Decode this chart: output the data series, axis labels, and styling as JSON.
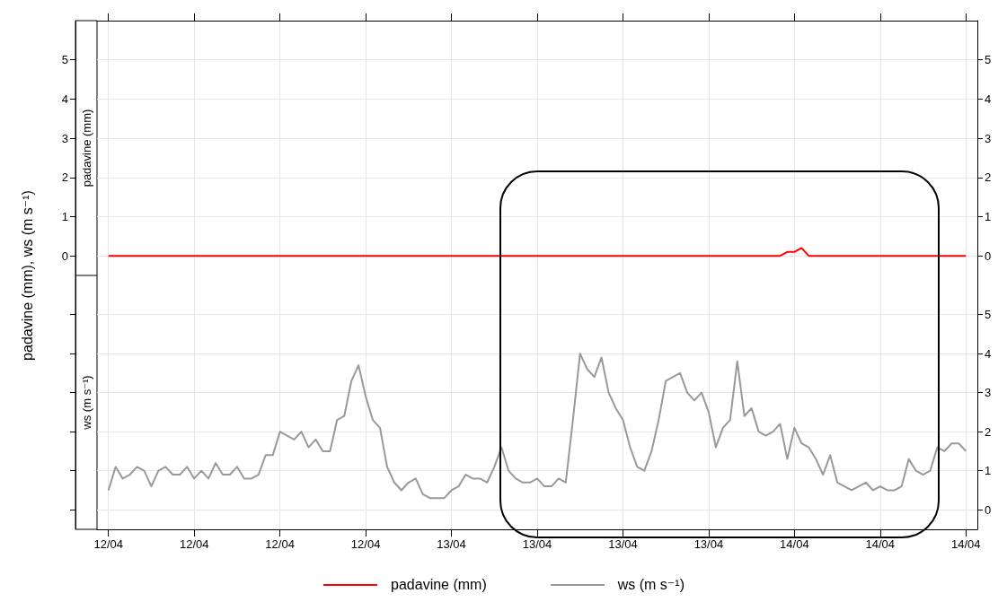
{
  "chart_data": [
    {
      "type": "line",
      "ylabel": "padavine (mm), ws (m s⁻¹)",
      "x": [
        "--04-12T00:00",
        "--04-12T00:30",
        "--04-12T01:00",
        "--04-12T01:30",
        "--04-12T02:00",
        "--04-12T02:30",
        "--04-12T03:00",
        "--04-12T03:30",
        "--04-12T04:00",
        "--04-12T04:30",
        "--04-12T05:00",
        "--04-12T05:30",
        "--04-12T06:00",
        "--04-12T06:30",
        "--04-12T07:00",
        "--04-12T07:30",
        "--04-12T08:00",
        "--04-12T08:30",
        "--04-12T09:00",
        "--04-12T09:30",
        "--04-12T10:00",
        "--04-12T10:30",
        "--04-12T11:00",
        "--04-12T11:30",
        "--04-12T12:00",
        "--04-12T12:30",
        "--04-12T13:00",
        "--04-12T13:30",
        "--04-12T14:00",
        "--04-12T14:30",
        "--04-12T15:00",
        "--04-12T15:30",
        "--04-12T16:00",
        "--04-12T16:30",
        "--04-12T17:00",
        "--04-12T17:30",
        "--04-12T18:00",
        "--04-12T18:30",
        "--04-12T19:00",
        "--04-12T19:30",
        "--04-12T20:00",
        "--04-12T20:30",
        "--04-12T21:00",
        "--04-12T21:30",
        "--04-12T22:00",
        "--04-12T22:30",
        "--04-12T23:00",
        "--04-12T23:30",
        "--04-13T00:00",
        "--04-13T00:30",
        "--04-13T01:00",
        "--04-13T01:30",
        "--04-13T02:00",
        "--04-13T02:30",
        "--04-13T03:00",
        "--04-13T03:30",
        "--04-13T04:00",
        "--04-13T04:30",
        "--04-13T05:00",
        "--04-13T05:30",
        "--04-13T06:00",
        "--04-13T06:30",
        "--04-13T07:00",
        "--04-13T07:30",
        "--04-13T08:00",
        "--04-13T08:30",
        "--04-13T09:00",
        "--04-13T09:30",
        "--04-13T10:00",
        "--04-13T10:30",
        "--04-13T11:00",
        "--04-13T11:30",
        "--04-13T12:00",
        "--04-13T12:30",
        "--04-13T13:00",
        "--04-13T13:30",
        "--04-13T14:00",
        "--04-13T14:30",
        "--04-13T15:00",
        "--04-13T15:30",
        "--04-13T16:00",
        "--04-13T16:30",
        "--04-13T17:00",
        "--04-13T17:30",
        "--04-13T18:00",
        "--04-13T18:30",
        "--04-13T19:00",
        "--04-13T19:30",
        "--04-13T20:00",
        "--04-13T20:30",
        "--04-13T21:00",
        "--04-13T21:30",
        "--04-13T22:00",
        "--04-13T22:30",
        "--04-13T23:00",
        "--04-13T23:30",
        "--04-14T00:00",
        "--04-14T00:30",
        "--04-14T01:00",
        "--04-14T01:30",
        "--04-14T02:00",
        "--04-14T02:30",
        "--04-14T03:00",
        "--04-14T03:30",
        "--04-14T04:00",
        "--04-14T04:30",
        "--04-14T05:00",
        "--04-14T05:30",
        "--04-14T06:00",
        "--04-14T06:30",
        "--04-14T07:00",
        "--04-14T07:30",
        "--04-14T08:00",
        "--04-14T08:30",
        "--04-14T09:00",
        "--04-14T09:30",
        "--04-14T10:00",
        "--04-14T10:30",
        "--04-14T11:00",
        "--04-14T11:30",
        "--04-14T12:00"
      ],
      "xlim": [
        "--04-11T23:12",
        "--04-14T12:48"
      ],
      "xticks": [
        {
          "value": "--04-12T00:00",
          "label": null
        },
        {
          "value": "--04-12T06:00",
          "label": null
        },
        {
          "value": "--04-12T12:00",
          "label": null
        },
        {
          "value": "--04-12T18:00",
          "label": null
        },
        {
          "value": "--04-13T00:00",
          "label": null
        },
        {
          "value": "--04-13T06:00",
          "label": null
        },
        {
          "value": "--04-13T12:00",
          "label": null
        },
        {
          "value": "--04-13T18:00",
          "label": null
        },
        {
          "value": "--04-14T00:00",
          "label": null
        },
        {
          "value": "--04-14T06:00",
          "label": null
        },
        {
          "value": "--04-14T12:00",
          "label": null
        }
      ],
      "ylim": [
        -0.5,
        6
      ],
      "yticks": [
        0,
        1,
        2,
        3,
        4,
        5
      ],
      "y2lim": [
        -0.5,
        6
      ],
      "y2ticks": [
        0,
        1,
        2,
        3,
        4,
        5
      ],
      "tick_labels": "y",
      "grid": true,
      "legend": "bottom",
      "series": [
        {
          "name": "padavine (mm)",
          "color": "#ff0000",
          "values": [
            0,
            0,
            0,
            0,
            0,
            0,
            0,
            0,
            0,
            0,
            0,
            0,
            0,
            0,
            0,
            0,
            0,
            0,
            0,
            0,
            0,
            0,
            0,
            0,
            0,
            0,
            0,
            0,
            0,
            0,
            0,
            0,
            0,
            0,
            0,
            0,
            0,
            0,
            0,
            0,
            0,
            0,
            0,
            0,
            0,
            0,
            0,
            0,
            0,
            0,
            0,
            0,
            0,
            0,
            0,
            0,
            0,
            0,
            0,
            0,
            0,
            0,
            0,
            0,
            0,
            0,
            0,
            0,
            0,
            0,
            0,
            0,
            0,
            0,
            0,
            0,
            0,
            0,
            0,
            0,
            0,
            0,
            0,
            0,
            0,
            0,
            0,
            0,
            0,
            0,
            0,
            0,
            0,
            0,
            0,
            0.1,
            0.1,
            0.2,
            0,
            0,
            0,
            0,
            0,
            0,
            0,
            0,
            0,
            0,
            0,
            0,
            0,
            0,
            0,
            0,
            0,
            0,
            0,
            0,
            0,
            0,
            0
          ]
        }
      ]
    },
    {
      "type": "line",
      "x": [
        "--04-12T00:00",
        "--04-12T00:30",
        "--04-12T01:00",
        "--04-12T01:30",
        "--04-12T02:00",
        "--04-12T02:30",
        "--04-12T03:00",
        "--04-12T03:30",
        "--04-12T04:00",
        "--04-12T04:30",
        "--04-12T05:00",
        "--04-12T05:30",
        "--04-12T06:00",
        "--04-12T06:30",
        "--04-12T07:00",
        "--04-12T07:30",
        "--04-12T08:00",
        "--04-12T08:30",
        "--04-12T09:00",
        "--04-12T09:30",
        "--04-12T10:00",
        "--04-12T10:30",
        "--04-12T11:00",
        "--04-12T11:30",
        "--04-12T12:00",
        "--04-12T12:30",
        "--04-12T13:00",
        "--04-12T13:30",
        "--04-12T14:00",
        "--04-12T14:30",
        "--04-12T15:00",
        "--04-12T15:30",
        "--04-12T16:00",
        "--04-12T16:30",
        "--04-12T17:00",
        "--04-12T17:30",
        "--04-12T18:00",
        "--04-12T18:30",
        "--04-12T19:00",
        "--04-12T19:30",
        "--04-12T20:00",
        "--04-12T20:30",
        "--04-12T21:00",
        "--04-12T21:30",
        "--04-12T22:00",
        "--04-12T22:30",
        "--04-12T23:00",
        "--04-12T23:30",
        "--04-13T00:00",
        "--04-13T00:30",
        "--04-13T01:00",
        "--04-13T01:30",
        "--04-13T02:00",
        "--04-13T02:30",
        "--04-13T03:00",
        "--04-13T03:30",
        "--04-13T04:00",
        "--04-13T04:30",
        "--04-13T05:00",
        "--04-13T05:30",
        "--04-13T06:00",
        "--04-13T06:30",
        "--04-13T07:00",
        "--04-13T07:30",
        "--04-13T08:00",
        "--04-13T08:30",
        "--04-13T09:00",
        "--04-13T09:30",
        "--04-13T10:00",
        "--04-13T10:30",
        "--04-13T11:00",
        "--04-13T11:30",
        "--04-13T12:00",
        "--04-13T12:30",
        "--04-13T13:00",
        "--04-13T13:30",
        "--04-13T14:00",
        "--04-13T14:30",
        "--04-13T15:00",
        "--04-13T15:30",
        "--04-13T16:00",
        "--04-13T16:30",
        "--04-13T17:00",
        "--04-13T17:30",
        "--04-13T18:00",
        "--04-13T18:30",
        "--04-13T19:00",
        "--04-13T19:30",
        "--04-13T20:00",
        "--04-13T20:30",
        "--04-13T21:00",
        "--04-13T21:30",
        "--04-13T22:00",
        "--04-13T22:30",
        "--04-13T23:00",
        "--04-13T23:30",
        "--04-14T00:00",
        "--04-14T00:30",
        "--04-14T01:00",
        "--04-14T01:30",
        "--04-14T02:00",
        "--04-14T02:30",
        "--04-14T03:00",
        "--04-14T03:30",
        "--04-14T04:00",
        "--04-14T04:30",
        "--04-14T05:00",
        "--04-14T05:30",
        "--04-14T06:00",
        "--04-14T06:30",
        "--04-14T07:00",
        "--04-14T07:30",
        "--04-14T08:00",
        "--04-14T08:30",
        "--04-14T09:00",
        "--04-14T09:30",
        "--04-14T10:00",
        "--04-14T10:30",
        "--04-14T11:00",
        "--04-14T11:30",
        "--04-14T12:00"
      ],
      "xlim": [
        "--04-11T23:12",
        "--04-14T12:48"
      ],
      "xticks": [
        {
          "value": "--04-12T00:00",
          "label": "12/04"
        },
        {
          "value": "--04-12T06:00",
          "label": "12/04"
        },
        {
          "value": "--04-12T12:00",
          "label": "12/04"
        },
        {
          "value": "--04-12T18:00",
          "label": "12/04"
        },
        {
          "value": "--04-13T00:00",
          "label": "13/04"
        },
        {
          "value": "--04-13T06:00",
          "label": "13/04"
        },
        {
          "value": "--04-13T12:00",
          "label": "13/04"
        },
        {
          "value": "--04-13T18:00",
          "label": "13/04"
        },
        {
          "value": "--04-14T00:00",
          "label": "14/04"
        },
        {
          "value": "--04-14T06:00",
          "label": "14/04"
        },
        {
          "value": "--04-14T12:00",
          "label": "14/04"
        }
      ],
      "ylim": [
        -0.5,
        6
      ],
      "yticks": [
        0,
        1,
        2,
        3,
        4,
        5
      ],
      "grid": true,
      "legend": "bottom",
      "series": [
        {
          "name": "ws (m s⁻¹)",
          "color": "#999999",
          "values": [
            0.5,
            1.1,
            0.8,
            0.9,
            1.1,
            1.0,
            0.6,
            1.0,
            1.1,
            0.9,
            0.9,
            1.1,
            0.8,
            1.0,
            0.8,
            1.2,
            0.9,
            0.9,
            1.1,
            0.8,
            0.8,
            0.9,
            1.4,
            1.4,
            2.0,
            1.9,
            1.8,
            2.0,
            1.6,
            1.8,
            1.5,
            1.5,
            2.3,
            2.4,
            3.3,
            3.7,
            2.9,
            2.3,
            2.1,
            1.1,
            0.7,
            0.5,
            0.7,
            0.8,
            0.4,
            0.3,
            0.3,
            0.3,
            0.5,
            0.6,
            0.9,
            0.8,
            0.8,
            0.7,
            1.1,
            1.6,
            1.0,
            0.8,
            0.7,
            0.7,
            0.8,
            0.6,
            0.6,
            0.8,
            0.7,
            2.3,
            4.0,
            3.6,
            3.4,
            3.9,
            3.0,
            2.6,
            2.3,
            1.6,
            1.1,
            1.0,
            1.5,
            2.3,
            3.3,
            3.4,
            3.5,
            3.0,
            2.8,
            3.0,
            2.5,
            1.6,
            2.1,
            2.3,
            3.8,
            2.4,
            2.6,
            2.0,
            1.9,
            2.0,
            2.2,
            1.3,
            2.1,
            1.7,
            1.6,
            1.3,
            0.9,
            1.4,
            0.7,
            0.6,
            0.5,
            0.6,
            0.7,
            0.5,
            0.6,
            0.5,
            0.5,
            0.6,
            1.3,
            1.0,
            0.9,
            1.0,
            1.6,
            1.5,
            1.7,
            1.7,
            1.5
          ]
        }
      ]
    }
  ]
}
